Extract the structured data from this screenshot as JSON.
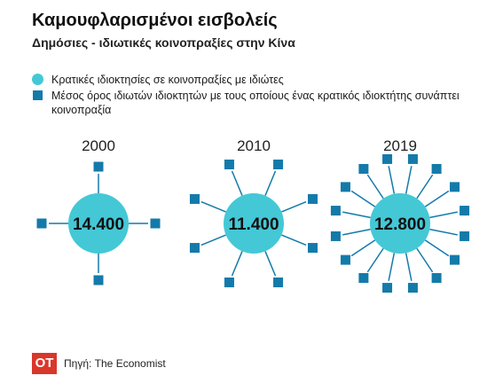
{
  "header": {
    "title": "Καμουφλαρισμένοι εισβολείς",
    "subtitle": "Δημόσιες - ιδιωτικές κοινοπραξίες στην Κίνα"
  },
  "legend": {
    "circle_label": "Κρατικές ιδιοκτησίες σε κοινοπραξίες με ιδιώτες",
    "square_label": "Μέσος όρος ιδιωτών ιδιοκτητών με τους οποίους ένας κρατικός ιδιοκτήτης συνάπτει κοινοπραξία"
  },
  "colors": {
    "circle": "#44c8d6",
    "square": "#137aaa",
    "logo": "#d9372b"
  },
  "chart_data": {
    "type": "pictogram",
    "categories": [
      "2000",
      "2010",
      "2019"
    ],
    "series": [
      {
        "name": "Κρατικές ιδιοκτησίες σε κοινοπραξίες με ιδιώτες",
        "values": [
          14400,
          11400,
          12800
        ],
        "labels": [
          "14.400",
          "11.400",
          "12.800"
        ]
      },
      {
        "name": "Μέσος όρος ιδιωτών ιδιοκτητών με τους οποίους ένας κρατικός ιδιοκτήτης συνάπτει κοινοπραξία",
        "values": [
          4,
          8,
          16
        ]
      }
    ]
  },
  "footer": {
    "logo": "ΟΤ",
    "source": "Πηγή: The Economist"
  }
}
